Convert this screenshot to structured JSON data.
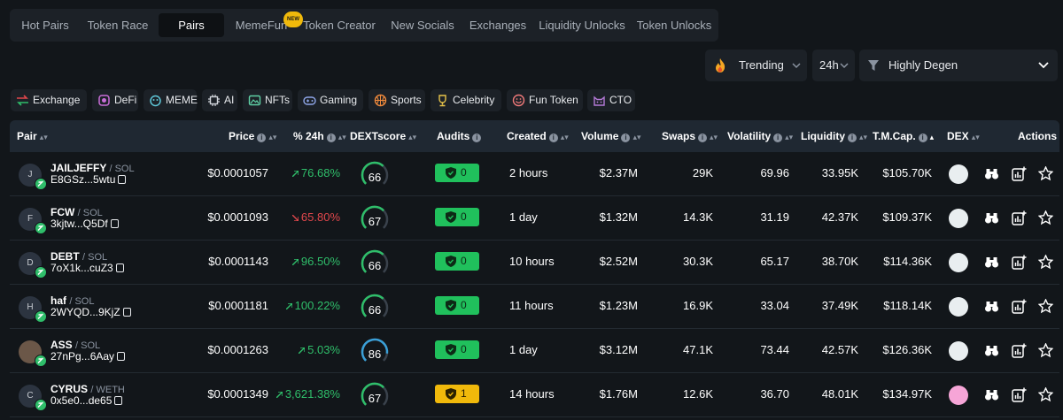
{
  "nav": {
    "tabs": [
      "Hot Pairs",
      "Token Race",
      "Pairs",
      "MemeFun",
      "Token Creator",
      "New Socials",
      "Exchanges",
      "Liquidity Unlocks",
      "Token Unlocks"
    ],
    "active": "Pairs",
    "new_badge": "NEW"
  },
  "controls": {
    "trending_label": "Trending",
    "timeframe": "24h",
    "filter_label": "Highly Degen"
  },
  "categories": [
    "Exchange",
    "DeFi",
    "MEME",
    "AI",
    "NFTs",
    "Gaming",
    "Sports",
    "Celebrity",
    "Fun Token",
    "CTO"
  ],
  "table": {
    "headers": {
      "pair": "Pair",
      "price": "Price",
      "change": "% 24h",
      "dextscore": "DEXTscore",
      "audits": "Audits",
      "created": "Created",
      "volume": "Volume",
      "swaps": "Swaps",
      "volatility": "Volatility",
      "liquidity": "Liquidity",
      "mcap": "T.M.Cap.",
      "dex": "DEX",
      "actions": "Actions"
    },
    "rows": [
      {
        "avatar": "J",
        "symbol": "JAILJEFFY",
        "quote": "/ SOL",
        "address": "E8GSz...5wtu",
        "price": "$0.0001057",
        "change": "76.68%",
        "dir": "up",
        "score": "66",
        "audit_count": "0",
        "created": "2 hours",
        "volume": "$2.37M",
        "swaps": "29K",
        "volatility": "69.96",
        "liquidity": "33.95K",
        "mcap": "$105.70K"
      },
      {
        "avatar": "F",
        "symbol": "FCW",
        "quote": "/ SOL",
        "address": "3kjtw...Q5Df",
        "price": "$0.0001093",
        "change": "65.80%",
        "dir": "down",
        "score": "67",
        "audit_count": "0",
        "created": "1 day",
        "volume": "$1.32M",
        "swaps": "14.3K",
        "volatility": "31.19",
        "liquidity": "42.37K",
        "mcap": "$109.37K"
      },
      {
        "avatar": "D",
        "symbol": "DEBT",
        "quote": "/ SOL",
        "address": "7oX1k...cuZ3",
        "price": "$0.0001143",
        "change": "96.50%",
        "dir": "up",
        "score": "66",
        "audit_count": "0",
        "created": "10 hours",
        "volume": "$2.52M",
        "swaps": "30.3K",
        "volatility": "65.17",
        "liquidity": "38.70K",
        "mcap": "$114.36K"
      },
      {
        "avatar": "H",
        "symbol": "haf",
        "quote": "/ SOL",
        "address": "2WYQD...9KjZ",
        "price": "$0.0001181",
        "change": "100.22%",
        "dir": "up",
        "score": "66",
        "audit_count": "0",
        "created": "11 hours",
        "volume": "$1.23M",
        "swaps": "16.9K",
        "volatility": "33.04",
        "liquidity": "37.49K",
        "mcap": "$118.14K"
      },
      {
        "avatar": "",
        "symbol": "ASS",
        "quote": "/ SOL",
        "address": "27nPg...6Aay",
        "price": "$0.0001263",
        "change": "5.03%",
        "dir": "up",
        "score": "86",
        "audit_count": "0",
        "created": "1 day",
        "volume": "$3.12M",
        "swaps": "47.1K",
        "volatility": "73.44",
        "liquidity": "42.57K",
        "mcap": "$126.36K"
      },
      {
        "avatar": "C",
        "symbol": "CYRUS",
        "quote": "/ WETH",
        "address": "0x5e0...de65",
        "price": "$0.0001349",
        "change": "3,621.38%",
        "dir": "up",
        "score": "67",
        "audit_count": "1",
        "created": "14 hours",
        "volume": "$1.76M",
        "swaps": "12.6K",
        "volatility": "36.70",
        "liquidity": "48.01K",
        "mcap": "$134.97K"
      }
    ]
  },
  "colors": {
    "positive": "#2fbe6a",
    "negative": "#e0474c",
    "audit_ok": "#20c05c",
    "audit_warn": "#f0b90b"
  }
}
